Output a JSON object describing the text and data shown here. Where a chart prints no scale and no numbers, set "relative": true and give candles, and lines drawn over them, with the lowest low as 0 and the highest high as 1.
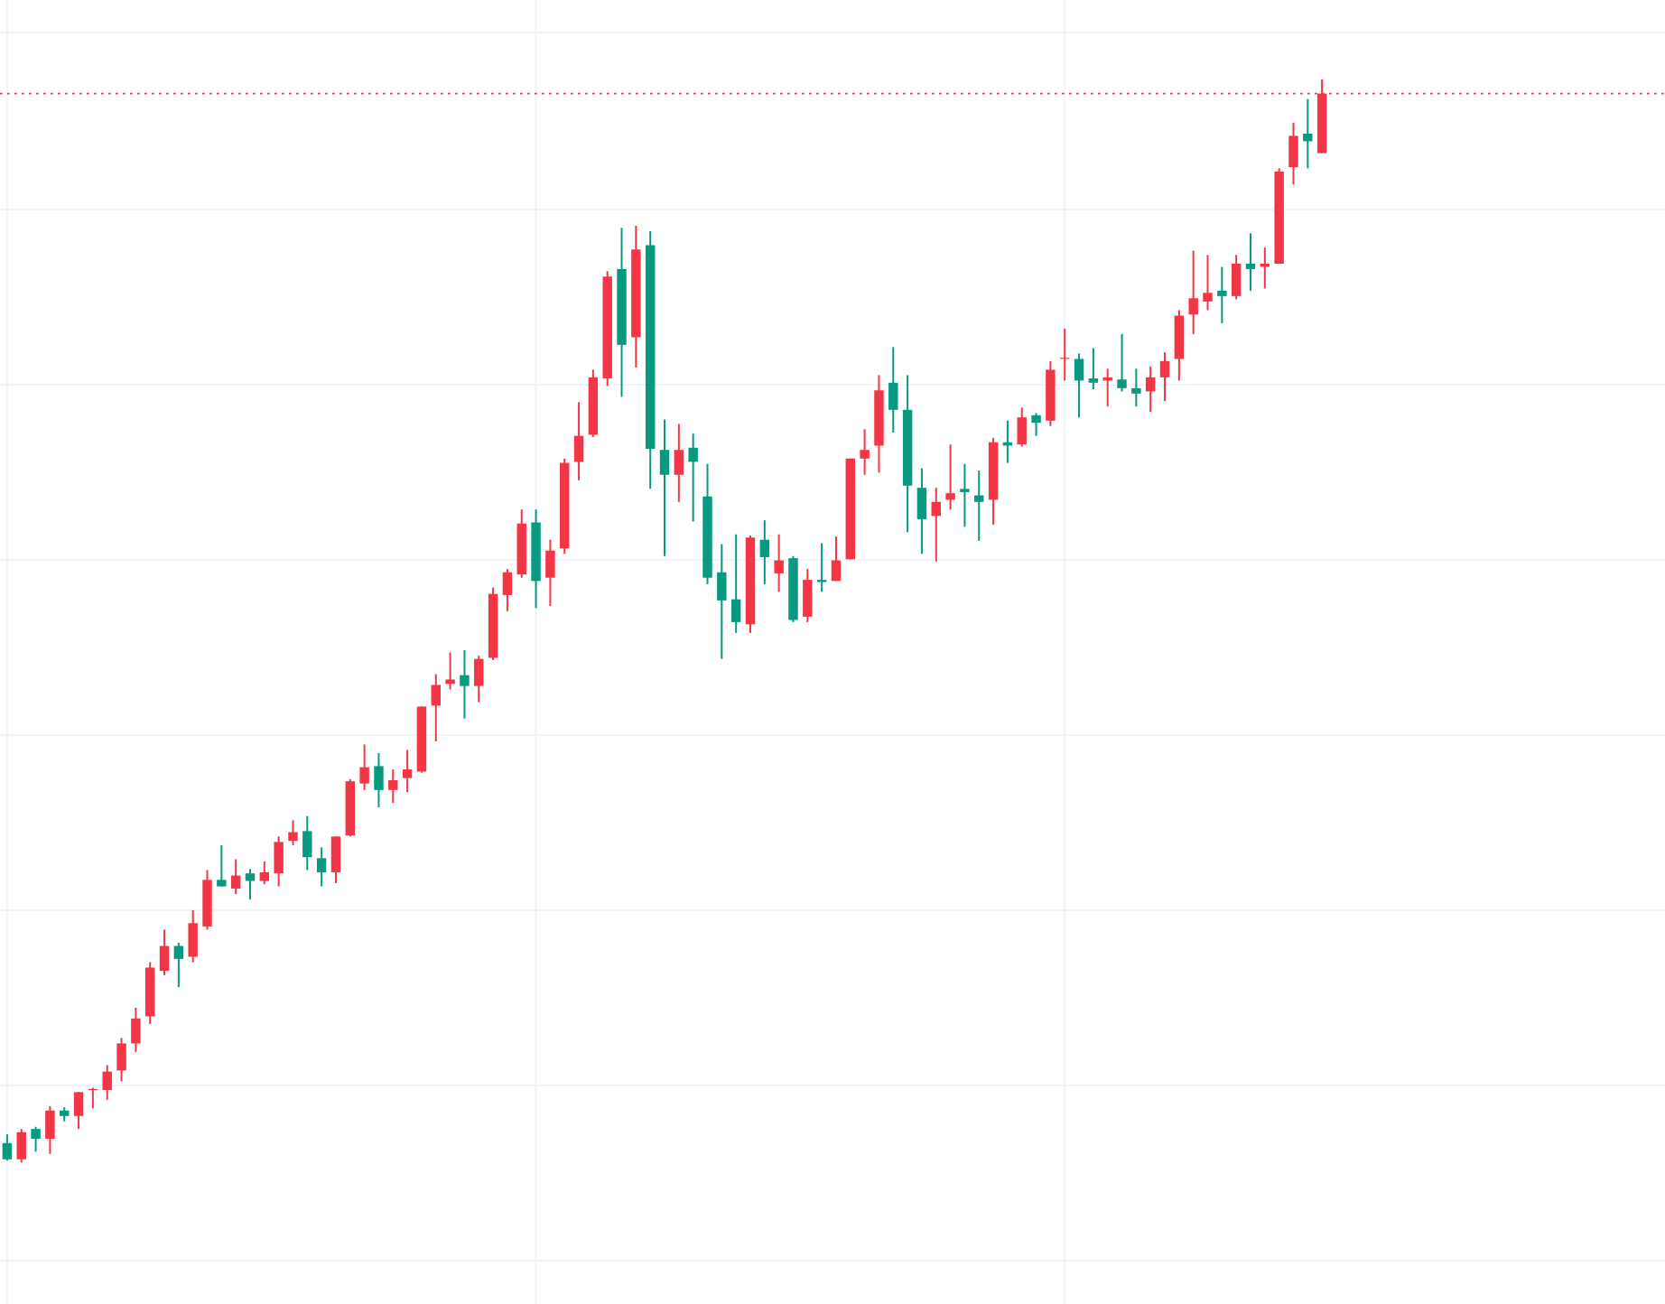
{
  "chart_data": {
    "type": "candlestick",
    "relative": true,
    "grid": true,
    "categories": [
      null,
      null,
      null,
      null,
      null,
      null,
      null,
      null,
      null,
      null,
      null,
      null,
      null,
      null,
      null,
      null,
      null,
      null,
      null,
      null,
      null,
      null,
      null,
      null,
      null,
      null,
      null,
      null,
      null,
      null,
      null,
      null,
      null,
      null,
      null,
      null,
      null,
      null,
      null,
      null,
      null,
      null,
      null,
      null,
      null,
      null,
      null,
      null,
      null,
      null,
      null,
      null,
      null,
      null,
      null,
      null,
      null,
      null,
      null,
      null,
      null,
      null,
      null,
      null,
      null,
      null,
      null,
      null,
      null,
      null,
      null,
      null,
      null,
      null,
      null,
      null,
      null,
      null,
      null,
      null,
      null,
      null,
      null,
      null,
      null,
      null,
      null,
      null,
      null,
      null,
      null,
      null,
      null
    ],
    "ohlc": [
      [
        0.018,
        0.026,
        0.002,
        0.003
      ],
      [
        0.003,
        0.031,
        0,
        0.028
      ],
      [
        0.031,
        0.033,
        0.01,
        0.022
      ],
      [
        0.022,
        0.052,
        0.008,
        0.048
      ],
      [
        0.048,
        0.051,
        0.038,
        0.043
      ],
      [
        0.043,
        0.065,
        0.031,
        0.065
      ],
      [
        0.067,
        0.069,
        0.05,
        0.068
      ],
      [
        0.067,
        0.09,
        0.058,
        0.084
      ],
      [
        0.085,
        0.115,
        0.075,
        0.11
      ],
      [
        0.11,
        0.143,
        0.102,
        0.133
      ],
      [
        0.135,
        0.185,
        0.128,
        0.18
      ],
      [
        0.177,
        0.215,
        0.173,
        0.2
      ],
      [
        0.2,
        0.203,
        0.162,
        0.188
      ],
      [
        0.19,
        0.233,
        0.185,
        0.221
      ],
      [
        0.218,
        0.27,
        0.215,
        0.261
      ],
      [
        0.261,
        0.293,
        0.255,
        0.255
      ],
      [
        0.253,
        0.28,
        0.248,
        0.265
      ],
      [
        0.267,
        0.271,
        0.243,
        0.26
      ],
      [
        0.26,
        0.278,
        0.257,
        0.268
      ],
      [
        0.267,
        0.301,
        0.255,
        0.296
      ],
      [
        0.297,
        0.316,
        0.293,
        0.305
      ],
      [
        0.306,
        0.32,
        0.27,
        0.282
      ],
      [
        0.281,
        0.291,
        0.255,
        0.268
      ],
      [
        0.268,
        0.301,
        0.258,
        0.301
      ],
      [
        0.302,
        0.354,
        0.301,
        0.352
      ],
      [
        0.35,
        0.386,
        0.344,
        0.365
      ],
      [
        0.366,
        0.378,
        0.328,
        0.344
      ],
      [
        0.344,
        0.363,
        0.332,
        0.353
      ],
      [
        0.355,
        0.381,
        0.342,
        0.363
      ],
      [
        0.361,
        0.421,
        0.36,
        0.421
      ],
      [
        0.422,
        0.451,
        0.389,
        0.441
      ],
      [
        0.442,
        0.471,
        0.437,
        0.446
      ],
      [
        0.45,
        0.473,
        0.41,
        0.44
      ],
      [
        0.44,
        0.468,
        0.425,
        0.465
      ],
      [
        0.466,
        0.531,
        0.464,
        0.525
      ],
      [
        0.524,
        0.548,
        0.509,
        0.545
      ],
      [
        0.543,
        0.603,
        0.54,
        0.59
      ],
      [
        0.591,
        0.603,
        0.512,
        0.537
      ],
      [
        0.54,
        0.575,
        0.514,
        0.565
      ],
      [
        0.567,
        0.65,
        0.562,
        0.646
      ],
      [
        0.647,
        0.702,
        0.63,
        0.671
      ],
      [
        0.672,
        0.732,
        0.67,
        0.725
      ],
      [
        0.724,
        0.823,
        0.717,
        0.818
      ],
      [
        0.825,
        0.863,
        0.707,
        0.755
      ],
      [
        0.762,
        0.865,
        0.734,
        0.843
      ],
      [
        0.847,
        0.86,
        0.622,
        0.659
      ],
      [
        0.658,
        0.686,
        0.56,
        0.635
      ],
      [
        0.635,
        0.682,
        0.61,
        0.658
      ],
      [
        0.66,
        0.673,
        0.592,
        0.647
      ],
      [
        0.615,
        0.645,
        0.534,
        0.54
      ],
      [
        0.545,
        0.571,
        0.465,
        0.519
      ],
      [
        0.52,
        0.58,
        0.489,
        0.499
      ],
      [
        0.497,
        0.579,
        0.489,
        0.577
      ],
      [
        0.575,
        0.593,
        0.534,
        0.559
      ],
      [
        0.544,
        0.58,
        0.527,
        0.556
      ],
      [
        0.558,
        0.56,
        0.499,
        0.501
      ],
      [
        0.504,
        0.548,
        0.499,
        0.538
      ],
      [
        0.538,
        0.572,
        0.527,
        0.536
      ],
      [
        0.537,
        0.578,
        0.537,
        0.556
      ],
      [
        0.557,
        0.65,
        0.557,
        0.65
      ],
      [
        0.65,
        0.677,
        0.635,
        0.658
      ],
      [
        0.662,
        0.727,
        0.637,
        0.713
      ],
      [
        0.72,
        0.753,
        0.674,
        0.695
      ],
      [
        0.695,
        0.727,
        0.582,
        0.625
      ],
      [
        0.623,
        0.641,
        0.562,
        0.594
      ],
      [
        0.597,
        0.623,
        0.555,
        0.61
      ],
      [
        0.612,
        0.663,
        0.603,
        0.618
      ],
      [
        0.622,
        0.645,
        0.587,
        0.619
      ],
      [
        0.616,
        0.639,
        0.574,
        0.61
      ],
      [
        0.612,
        0.669,
        0.589,
        0.665
      ],
      [
        0.665,
        0.685,
        0.646,
        0.662
      ],
      [
        0.663,
        0.697,
        0.661,
        0.688
      ],
      [
        0.69,
        0.692,
        0.671,
        0.683
      ],
      [
        0.685,
        0.74,
        0.68,
        0.732
      ],
      [
        0.742,
        0.77,
        0.722,
        0.743
      ],
      [
        0.742,
        0.747,
        0.688,
        0.722
      ],
      [
        0.724,
        0.752,
        0.714,
        0.72
      ],
      [
        0.722,
        0.733,
        0.698,
        0.725
      ],
      [
        0.723,
        0.765,
        0.712,
        0.715
      ],
      [
        0.715,
        0.733,
        0.698,
        0.71
      ],
      [
        0.712,
        0.735,
        0.693,
        0.725
      ],
      [
        0.725,
        0.748,
        0.703,
        0.74
      ],
      [
        0.742,
        0.787,
        0.722,
        0.782
      ],
      [
        0.783,
        0.842,
        0.765,
        0.798
      ],
      [
        0.795,
        0.838,
        0.787,
        0.803
      ],
      [
        0.805,
        0.827,
        0.775,
        0.8
      ],
      [
        0.8,
        0.838,
        0.797,
        0.83
      ],
      [
        0.83,
        0.858,
        0.805,
        0.825
      ],
      [
        0.827,
        0.845,
        0.807,
        0.83
      ],
      [
        0.83,
        0.918,
        0.83,
        0.915
      ],
      [
        0.919,
        0.96,
        0.903,
        0.948
      ],
      [
        0.95,
        0.982,
        0.918,
        0.943
      ],
      [
        0.932,
        1,
        0.932,
        0.987
      ]
    ],
    "colors": [
      "#089981",
      "#f23645",
      "#089981",
      "#f23645",
      "#089981",
      "#f23645",
      "#f23645",
      "#f23645",
      "#f23645",
      "#f23645",
      "#f23645",
      "#f23645",
      "#089981",
      "#f23645",
      "#f23645",
      "#089981",
      "#f23645",
      "#089981",
      "#f23645",
      "#f23645",
      "#f23645",
      "#089981",
      "#089981",
      "#f23645",
      "#f23645",
      "#f23645",
      "#089981",
      "#f23645",
      "#f23645",
      "#f23645",
      "#f23645",
      "#f23645",
      "#089981",
      "#f23645",
      "#f23645",
      "#f23645",
      "#f23645",
      "#089981",
      "#f23645",
      "#f23645",
      "#f23645",
      "#f23645",
      "#f23645",
      "#089981",
      "#f23645",
      "#089981",
      "#089981",
      "#f23645",
      "#089981",
      "#089981",
      "#089981",
      "#089981",
      "#f23645",
      "#089981",
      "#f23645",
      "#089981",
      "#f23645",
      "#089981",
      "#f23645",
      "#f23645",
      "#f23645",
      "#f23645",
      "#089981",
      "#089981",
      "#089981",
      "#f23645",
      "#f23645",
      "#089981",
      "#089981",
      "#f23645",
      "#089981",
      "#f23645",
      "#089981",
      "#f23645",
      "#f23645",
      "#089981",
      "#089981",
      "#f23645",
      "#089981",
      "#089981",
      "#f23645",
      "#f23645",
      "#f23645",
      "#f23645",
      "#f23645",
      "#089981",
      "#f23645",
      "#089981",
      "#f23645",
      "#f23645",
      "#f23645",
      "#089981",
      "#f23645"
    ],
    "ref_lines": [
      {
        "axis": "y",
        "value": 0.987,
        "color": "#f23645",
        "line_style": "dotted"
      }
    ]
  }
}
